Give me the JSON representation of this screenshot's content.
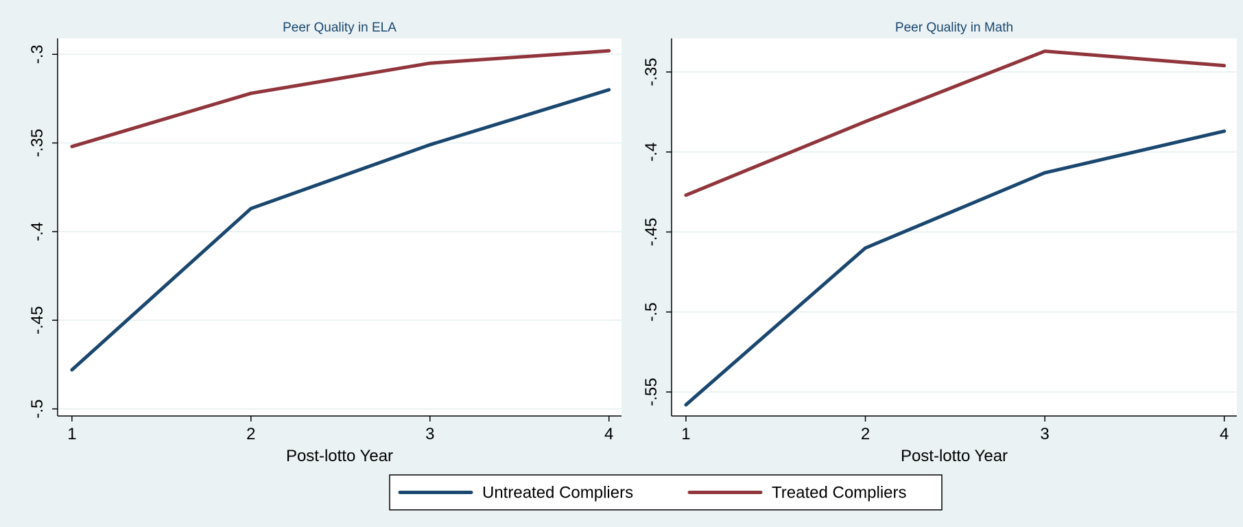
{
  "colors": {
    "background": "#eaf2f3",
    "plot_background": "#ffffff",
    "grid": "#eaf2f3",
    "title": "#1a476f",
    "text": "#000000"
  },
  "chart_data": [
    {
      "type": "line",
      "title": "Peer Quality in ELA",
      "xlabel": "Post-lotto Year",
      "ylabel": "",
      "x": [
        1,
        2,
        3,
        4
      ],
      "xticks": [
        "1",
        "2",
        "3",
        "4"
      ],
      "xlim": [
        0.92,
        4.07
      ],
      "yticks": [
        "-.5",
        "-.45",
        "-.4",
        "-.35",
        "-.3"
      ],
      "ytick_values": [
        -0.5,
        -0.45,
        -0.4,
        -0.35,
        -0.3
      ],
      "ylim": [
        -0.504,
        -0.291
      ],
      "grid": true,
      "series": [
        {
          "name": "Untreated Compliers",
          "color": "#1a476f",
          "values": [
            -0.478,
            -0.387,
            -0.351,
            -0.32
          ]
        },
        {
          "name": "Treated Compliers",
          "color": "#90353b",
          "values": [
            -0.352,
            -0.322,
            -0.305,
            -0.298
          ]
        }
      ]
    },
    {
      "type": "line",
      "title": "Peer Quality in Math",
      "xlabel": "Post-lotto Year",
      "ylabel": "",
      "x": [
        1,
        2,
        3,
        4
      ],
      "xticks": [
        "1",
        "2",
        "3",
        "4"
      ],
      "xlim": [
        0.92,
        4.07
      ],
      "yticks": [
        "-.55",
        "-.5",
        "-.45",
        "-.4",
        "-.35"
      ],
      "ytick_values": [
        -0.55,
        -0.5,
        -0.45,
        -0.4,
        -0.35
      ],
      "ylim": [
        -0.565,
        -0.329
      ],
      "grid": true,
      "series": [
        {
          "name": "Untreated Compliers",
          "color": "#1a476f",
          "values": [
            -0.558,
            -0.46,
            -0.413,
            -0.387
          ]
        },
        {
          "name": "Treated Compliers",
          "color": "#90353b",
          "values": [
            -0.427,
            -0.381,
            -0.337,
            -0.346
          ]
        }
      ]
    }
  ],
  "legend": {
    "position": "bottom",
    "items": [
      {
        "label": "Untreated Compliers",
        "color": "#1a476f"
      },
      {
        "label": "Treated Compliers",
        "color": "#90353b"
      }
    ]
  }
}
